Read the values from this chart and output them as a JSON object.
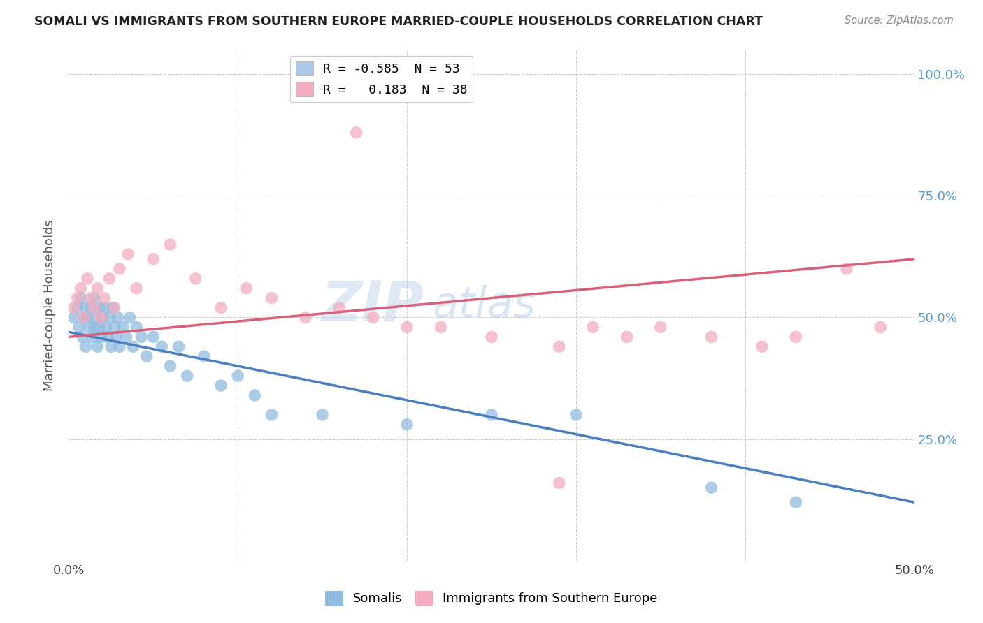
{
  "title": "SOMALI VS IMMIGRANTS FROM SOUTHERN EUROPE MARRIED-COUPLE HOUSEHOLDS CORRELATION CHART",
  "source": "Source: ZipAtlas.com",
  "ylabel": "Married-couple Households",
  "xlim": [
    0.0,
    0.5
  ],
  "ylim": [
    0.0,
    1.05
  ],
  "ytick_values": [
    0.0,
    0.25,
    0.5,
    0.75,
    1.0
  ],
  "xtick_values": [
    0.0,
    0.1,
    0.2,
    0.3,
    0.4,
    0.5
  ],
  "watermark_zip": "ZIP",
  "watermark_atlas": "atlas",
  "legend_entries": [
    {
      "label_r": "R = -0.585",
      "label_n": "N = 53",
      "color": "#adc9e8"
    },
    {
      "label_r": "R =   0.183",
      "label_n": "N = 38",
      "color": "#f4adc0"
    }
  ],
  "somali_color": "#90bce0",
  "southern_europe_color": "#f4adc0",
  "somali_line_color": "#4a7fc1",
  "southern_europe_line_color": "#d9607a",
  "background_color": "#ffffff",
  "grid_color": "#cccccc",
  "somali_points_x": [
    0.003,
    0.005,
    0.006,
    0.007,
    0.008,
    0.009,
    0.01,
    0.01,
    0.011,
    0.012,
    0.013,
    0.014,
    0.015,
    0.015,
    0.016,
    0.017,
    0.018,
    0.018,
    0.019,
    0.02,
    0.021,
    0.022,
    0.023,
    0.024,
    0.025,
    0.026,
    0.027,
    0.028,
    0.029,
    0.03,
    0.032,
    0.034,
    0.036,
    0.038,
    0.04,
    0.043,
    0.046,
    0.05,
    0.055,
    0.06,
    0.065,
    0.07,
    0.08,
    0.09,
    0.1,
    0.11,
    0.12,
    0.15,
    0.2,
    0.25,
    0.3,
    0.38,
    0.43
  ],
  "somali_points_y": [
    0.5,
    0.52,
    0.48,
    0.54,
    0.46,
    0.5,
    0.52,
    0.44,
    0.5,
    0.48,
    0.52,
    0.46,
    0.54,
    0.48,
    0.5,
    0.44,
    0.52,
    0.48,
    0.46,
    0.5,
    0.52,
    0.48,
    0.46,
    0.5,
    0.44,
    0.52,
    0.48,
    0.46,
    0.5,
    0.44,
    0.48,
    0.46,
    0.5,
    0.44,
    0.48,
    0.46,
    0.42,
    0.46,
    0.44,
    0.4,
    0.44,
    0.38,
    0.42,
    0.36,
    0.38,
    0.34,
    0.3,
    0.3,
    0.28,
    0.3,
    0.3,
    0.15,
    0.12
  ],
  "southern_europe_points_x": [
    0.003,
    0.005,
    0.007,
    0.009,
    0.011,
    0.013,
    0.015,
    0.017,
    0.019,
    0.021,
    0.024,
    0.027,
    0.03,
    0.035,
    0.04,
    0.05,
    0.06,
    0.075,
    0.09,
    0.105,
    0.12,
    0.14,
    0.16,
    0.18,
    0.2,
    0.22,
    0.25,
    0.29,
    0.31,
    0.33,
    0.35,
    0.38,
    0.41,
    0.43,
    0.46,
    0.48,
    0.17,
    0.29
  ],
  "southern_europe_points_y": [
    0.52,
    0.54,
    0.56,
    0.5,
    0.58,
    0.54,
    0.52,
    0.56,
    0.5,
    0.54,
    0.58,
    0.52,
    0.6,
    0.63,
    0.56,
    0.62,
    0.65,
    0.58,
    0.52,
    0.56,
    0.54,
    0.5,
    0.52,
    0.5,
    0.48,
    0.48,
    0.46,
    0.44,
    0.48,
    0.46,
    0.48,
    0.46,
    0.44,
    0.46,
    0.6,
    0.48,
    0.88,
    0.16
  ],
  "somali_line_x": [
    0.0,
    0.5
  ],
  "somali_line_y": [
    0.47,
    0.12
  ],
  "southern_europe_line_x": [
    0.0,
    0.5
  ],
  "southern_europe_line_y": [
    0.46,
    0.62
  ]
}
